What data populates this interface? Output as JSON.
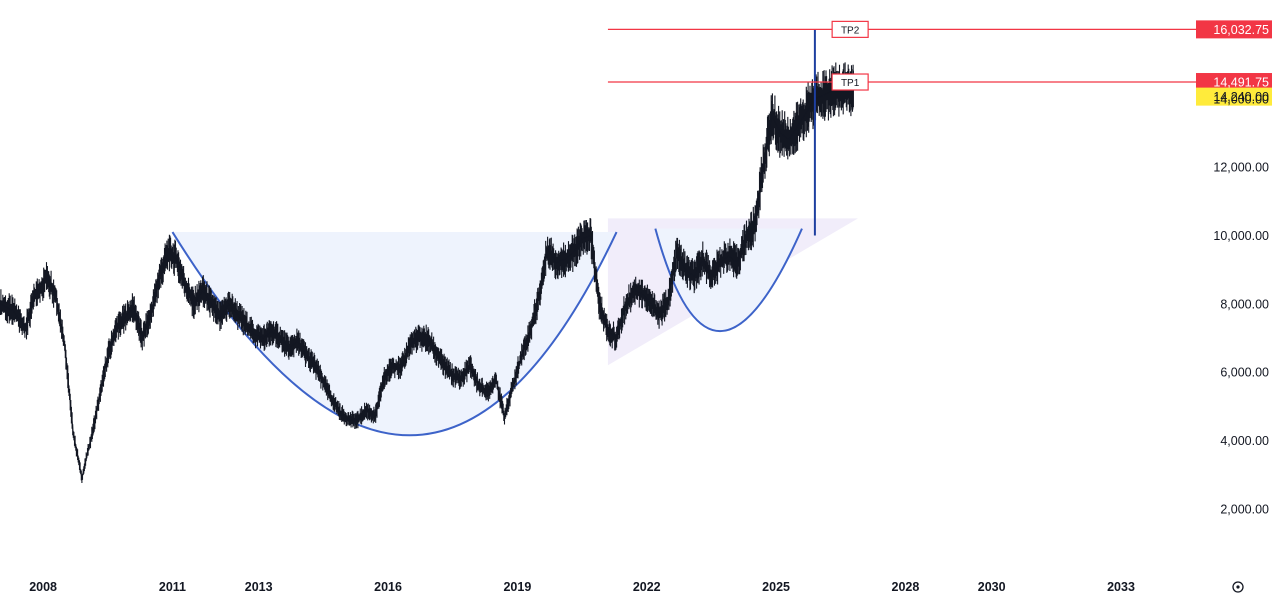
{
  "chart_data": {
    "type": "line",
    "title": "",
    "xlabel": "",
    "ylabel": "",
    "xlim": [
      2007.0,
      2034.6
    ],
    "ylim": [
      500,
      16600
    ],
    "grid": false,
    "y_ticks": [
      {
        "value": 2000,
        "label": "2,000.00"
      },
      {
        "value": 4000,
        "label": "4,000.00"
      },
      {
        "value": 6000,
        "label": "6,000.00"
      },
      {
        "value": 8000,
        "label": "8,000.00"
      },
      {
        "value": 10000,
        "label": "10,000.00"
      },
      {
        "value": 12000,
        "label": "12,000.00"
      },
      {
        "value": 14000,
        "label": "14,000.00"
      }
    ],
    "x_ticks": [
      {
        "value": 2008,
        "label": "2008"
      },
      {
        "value": 2011,
        "label": "2011"
      },
      {
        "value": 2013,
        "label": "2013"
      },
      {
        "value": 2016,
        "label": "2016"
      },
      {
        "value": 2019,
        "label": "2019"
      },
      {
        "value": 2022,
        "label": "2022"
      },
      {
        "value": 2025,
        "label": "2025"
      },
      {
        "value": 2028,
        "label": "2028"
      },
      {
        "value": 2030,
        "label": "2030"
      },
      {
        "value": 2033,
        "label": "2033"
      }
    ],
    "series": [
      {
        "color": "#131722",
        "x": [
          2007.0,
          2007.3,
          2007.6,
          2007.8,
          2008.1,
          2008.3,
          2008.5,
          2008.7,
          2008.9,
          2009.1,
          2009.3,
          2009.5,
          2009.7,
          2009.9,
          2010.1,
          2010.3,
          2010.5,
          2010.7,
          2010.9,
          2011.1,
          2011.3,
          2011.5,
          2011.7,
          2011.9,
          2012.1,
          2012.3,
          2012.5,
          2012.7,
          2012.9,
          2013.1,
          2013.3,
          2013.5,
          2013.7,
          2013.9,
          2014.1,
          2014.3,
          2014.5,
          2014.7,
          2014.9,
          2015.1,
          2015.3,
          2015.5,
          2015.7,
          2015.9,
          2016.1,
          2016.3,
          2016.5,
          2016.7,
          2016.9,
          2017.1,
          2017.3,
          2017.5,
          2017.7,
          2017.9,
          2018.1,
          2018.3,
          2018.5,
          2018.7,
          2018.9,
          2019.1,
          2019.3,
          2019.5,
          2019.7,
          2019.9,
          2020.1,
          2020.3,
          2020.5,
          2020.7,
          2020.9,
          2021.1,
          2021.3,
          2021.5,
          2021.7,
          2021.9,
          2022.1,
          2022.3,
          2022.5,
          2022.7,
          2022.9,
          2023.1,
          2023.3,
          2023.5,
          2023.7,
          2023.9,
          2024.1,
          2024.3,
          2024.5,
          2024.7,
          2024.9,
          2025.1,
          2025.3,
          2025.5,
          2025.7,
          2025.9,
          2026.1,
          2026.3,
          2026.5,
          2026.7,
          2026.8
        ],
        "y": [
          8000,
          7800,
          7300,
          8200,
          8800,
          8200,
          6800,
          4200,
          2900,
          4000,
          5200,
          6500,
          7300,
          7600,
          7900,
          7000,
          7700,
          8800,
          9500,
          9300,
          8500,
          8000,
          8400,
          8000,
          7600,
          8000,
          7700,
          7400,
          7100,
          7000,
          7200,
          7000,
          6700,
          6900,
          6500,
          6200,
          5700,
          5200,
          4800,
          4600,
          4600,
          4900,
          4700,
          5800,
          6200,
          6100,
          6800,
          7000,
          7000,
          6600,
          6200,
          5900,
          5800,
          6200,
          5600,
          5400,
          5800,
          4700,
          5600,
          6500,
          7200,
          8200,
          9600,
          9200,
          9300,
          9500,
          9900,
          10000,
          8000,
          7200,
          7000,
          7900,
          8400,
          8300,
          8000,
          7700,
          8100,
          9500,
          9000,
          8800,
          9300,
          8800,
          9200,
          9400,
          9200,
          9900,
          10300,
          12000,
          13500,
          13000,
          12800,
          13200,
          13600,
          14000,
          14100,
          14240,
          14240,
          14240,
          14240
        ]
      }
    ],
    "patterns": {
      "big_cup": {
        "x": [
          2011.0,
          2021.3
        ],
        "rim": 10100,
        "bottom": {
          "x": 2016.5,
          "y": 4150
        }
      },
      "small_cup": {
        "x": [
          2022.2,
          2025.6
        ],
        "rim": 10200,
        "bottom": {
          "x": 2023.7,
          "y": 7200
        }
      },
      "flag_triangle": {
        "x": [
          2021.1,
          2026.9
        ],
        "top": 10500,
        "bottom_start": 6200
      }
    },
    "breakout_move": {
      "x": 2025.9,
      "from": 10000,
      "to": 16032.75
    },
    "price_levels": [
      {
        "name": "TP2",
        "value": 16032.75,
        "label": "16,032.75",
        "color": "#f23645",
        "text_color": "#ffffff"
      },
      {
        "name": "TP1",
        "value": 14491.75,
        "label": "14,491.75",
        "color": "#f23645",
        "text_color": "#ffffff"
      },
      {
        "name": "",
        "value": 14240.0,
        "label": "14,240.00",
        "color": "#ffeb3b",
        "text_color": "#131722"
      }
    ],
    "colors": {
      "candles": "#131722",
      "cup_fill": "#eef3fd",
      "cup_curve": "#3d63c9",
      "triangle_fill": "#f1edfa",
      "level_line": "#f23645"
    }
  },
  "ui": {
    "settings_icon": "gear-icon"
  }
}
